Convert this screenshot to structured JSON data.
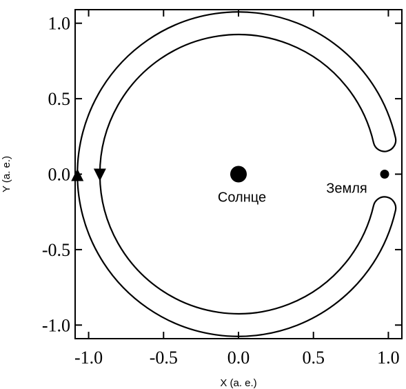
{
  "chart_data": {
    "type": "scatter",
    "title": "",
    "xlabel": "X (a. e.)",
    "ylabel": "Y (a. e.)",
    "xlim": [
      -1.09,
      1.09
    ],
    "ylim": [
      -1.09,
      1.09
    ],
    "grid": false,
    "legend": "none",
    "x_ticks": [
      -1.0,
      -0.5,
      0.0,
      0.5,
      1.0
    ],
    "y_ticks": [
      -1.0,
      -0.5,
      0.0,
      0.5,
      1.0
    ],
    "x_tick_labels": [
      "-1.0",
      "-0.5",
      "0.0",
      "0.5",
      "1.0"
    ],
    "y_tick_labels": [
      "-1.0",
      "-0.5",
      "0.0",
      "0.5",
      "1.0"
    ],
    "series": [
      {
        "kind": "horseshoe-orbit-boundary",
        "outer_radius": 1.075,
        "inner_radius": 0.925,
        "tip_angles_deg": [
          13,
          -13
        ],
        "color": "#000000"
      }
    ],
    "bodies": [
      {
        "label": "Солнце",
        "x": 0.0,
        "y": 0.0
      },
      {
        "label": "Земля",
        "x": 0.975,
        "y": 0.0
      }
    ],
    "markers": [
      {
        "kind": "triangle-up",
        "x": -1.075,
        "y": 0.0
      },
      {
        "kind": "triangle-down",
        "x": -0.925,
        "y": 0.0
      }
    ]
  }
}
